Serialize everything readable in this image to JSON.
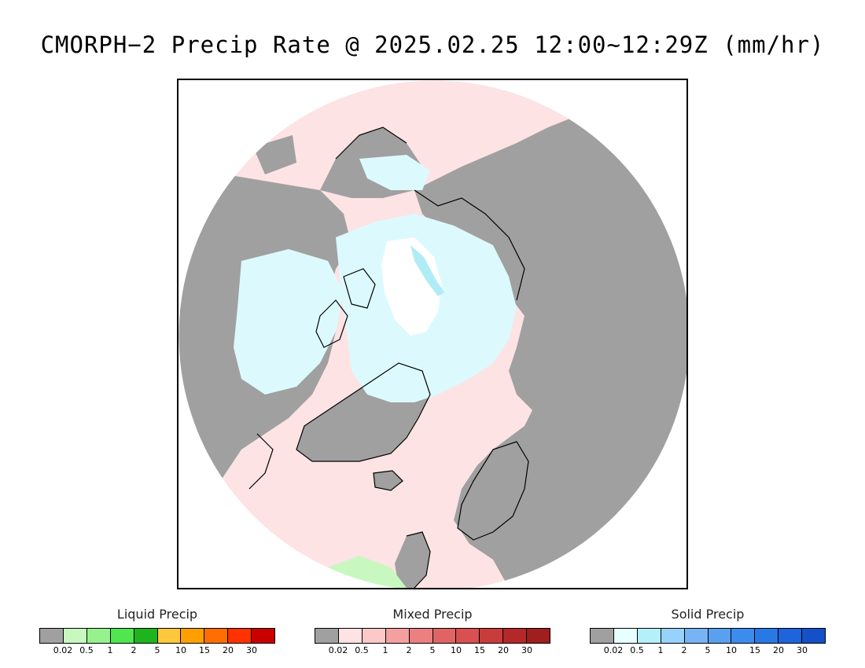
{
  "title": "CMORPH−2 Precip Rate @ 2025.02.25 12:00~12:29Z (mm/hr)",
  "map": {
    "colors": {
      "no_precip": "#a0a0a0",
      "mixed_light": "#fde3e3",
      "solid_light": "#dcfafd",
      "solid_medium": "#b0ecf6",
      "liquid_light": "#c8f8c0",
      "no_data": "#ffffff",
      "coast": "#000000"
    }
  },
  "legends": [
    {
      "title": "Liquid Precip",
      "colors": [
        "#a0a0a0",
        "#c8f8c0",
        "#96f28c",
        "#50e650",
        "#1eb41e",
        "#ffc83c",
        "#ffa000",
        "#ff6e00",
        "#ff3200",
        "#c80000"
      ],
      "labels": [
        "0.02",
        "0.5",
        "1",
        "2",
        "5",
        "10",
        "15",
        "20",
        "30"
      ]
    },
    {
      "title": "Mixed Precip",
      "colors": [
        "#a0a0a0",
        "#fde3e3",
        "#fcc8c8",
        "#f4a0a0",
        "#ec8080",
        "#e06464",
        "#d85050",
        "#c83c3c",
        "#b42828",
        "#a01e1e"
      ],
      "labels": [
        "0.02",
        "0.5",
        "1",
        "2",
        "5",
        "10",
        "15",
        "20",
        "30"
      ]
    },
    {
      "title": "Solid Precip",
      "colors": [
        "#a0a0a0",
        "#e6ffff",
        "#b4f0fa",
        "#96d2fa",
        "#78b4f5",
        "#5aa0f0",
        "#3c8cf0",
        "#2878e6",
        "#1e64dc",
        "#1450c8"
      ],
      "labels": [
        "0.02",
        "0.5",
        "1",
        "2",
        "5",
        "10",
        "15",
        "20",
        "30"
      ]
    }
  ]
}
